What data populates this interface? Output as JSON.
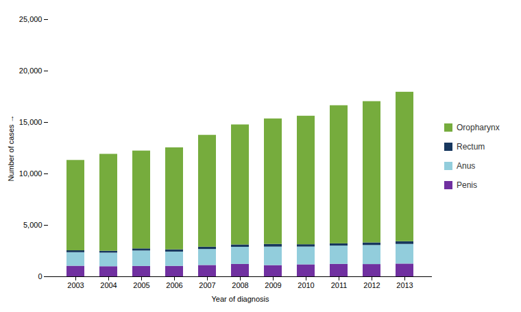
{
  "chart_data": {
    "type": "bar",
    "stacked": true,
    "categories": [
      "2003",
      "2004",
      "2005",
      "2006",
      "2007",
      "2008",
      "2009",
      "2010",
      "2011",
      "2012",
      "2013"
    ],
    "series": [
      {
        "name": "Penis",
        "color": "#7030A0",
        "values": [
          1029,
          983,
          1009,
          1020,
          1102,
          1207,
          1091,
          1165,
          1213,
          1194,
          1241
        ]
      },
      {
        "name": "Anus",
        "color": "#92CDDC",
        "values": [
          1319,
          1323,
          1503,
          1386,
          1555,
          1663,
          1800,
          1730,
          1777,
          1849,
          1910
        ]
      },
      {
        "name": "Rectum",
        "color": "#17375E",
        "values": [
          184,
          181,
          202,
          220,
          223,
          229,
          260,
          226,
          219,
          253,
          261
        ]
      },
      {
        "name": "Oropharynx",
        "color": "#76AC3D",
        "values": [
          8782,
          9421,
          9512,
          9915,
          10875,
          11668,
          12198,
          12493,
          13424,
          13735,
          14532
        ]
      }
    ],
    "xlabel": "Year of diagnosis",
    "ylabel": "Number of cases",
    "ylim": [
      0,
      25000
    ],
    "yticks": [
      0,
      {
        "value": 5000,
        "label": "5,000"
      },
      {
        "value": 10000,
        "label": "10,000"
      },
      {
        "value": 15000,
        "label": "15,000"
      },
      {
        "value": 20000,
        "label": "20,000"
      },
      {
        "value": 25000,
        "label": "25,000"
      }
    ],
    "grid": false,
    "legend": "right"
  }
}
